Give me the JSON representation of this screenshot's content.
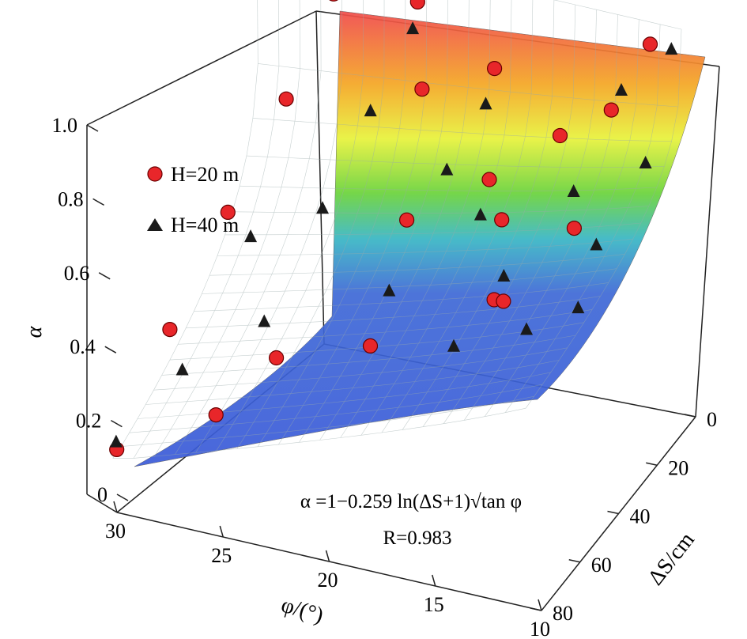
{
  "chart_data": {
    "type": "surface3d-scatter",
    "zlabel": "α",
    "xlabel": "φ/(°)",
    "ylabel": "ΔS/cm",
    "z_ticks": [
      "0",
      "0.2",
      "0.4",
      "0.6",
      "0.8",
      "1.0"
    ],
    "x_ticks": [
      "30",
      "25",
      "20",
      "15",
      "10"
    ],
    "y_ticks": [
      "0",
      "20",
      "40",
      "60",
      "80"
    ],
    "xlim": [
      10,
      30
    ],
    "ylim": [
      0,
      80
    ],
    "zlim": [
      0,
      1.0
    ],
    "equation": "α =1−0.259 ln(ΔS+1)√tan φ",
    "r_value": "R=0.983",
    "surface_colormap": [
      "#3b5bd9",
      "#38b6c4",
      "#6ad33a",
      "#e8f23a",
      "#f5a623",
      "#f04a4a"
    ],
    "legend": [
      {
        "label": "H=20 m",
        "marker": "circle",
        "color": "#e8262a"
      },
      {
        "label": "H=40 m",
        "marker": "triangle",
        "color": "#1a1a1a"
      }
    ],
    "series": [
      {
        "name": "H=20 m",
        "marker": "circle",
        "points": [
          [
            30,
            78,
            0.15
          ],
          [
            29,
            60,
            0.36
          ],
          [
            28,
            40,
            0.55
          ],
          [
            27,
            20,
            0.73
          ],
          [
            26,
            5,
            0.92
          ],
          [
            26,
            70,
            0.24
          ],
          [
            24,
            60,
            0.35
          ],
          [
            20,
            55,
            0.4
          ],
          [
            20,
            35,
            0.6
          ],
          [
            21,
            15,
            0.8
          ],
          [
            22,
            5,
            0.95
          ],
          [
            15,
            45,
            0.52
          ],
          [
            16,
            30,
            0.62
          ],
          [
            17,
            25,
            0.68
          ],
          [
            18,
            10,
            0.86
          ],
          [
            12,
            35,
            0.68
          ],
          [
            12,
            15,
            0.86
          ],
          [
            11,
            5,
            0.98
          ],
          [
            14,
            20,
            0.8
          ],
          [
            14,
            50,
            0.56
          ]
        ]
      },
      {
        "name": "H=40 m",
        "marker": "triangle",
        "points": [
          [
            30,
            78,
            0.17
          ],
          [
            28,
            65,
            0.3
          ],
          [
            27,
            40,
            0.5
          ],
          [
            25,
            55,
            0.4
          ],
          [
            24,
            35,
            0.58
          ],
          [
            23,
            20,
            0.75
          ],
          [
            22,
            8,
            0.9
          ],
          [
            20,
            45,
            0.48
          ],
          [
            19,
            25,
            0.68
          ],
          [
            18,
            15,
            0.8
          ],
          [
            17,
            30,
            0.62
          ],
          [
            16,
            55,
            0.45
          ],
          [
            15,
            40,
            0.55
          ],
          [
            13,
            25,
            0.7
          ],
          [
            12,
            10,
            0.88
          ],
          [
            11,
            45,
            0.55
          ],
          [
            10,
            20,
            0.78
          ],
          [
            10,
            5,
            0.98
          ],
          [
            11,
            35,
            0.65
          ],
          [
            13,
            50,
            0.5
          ]
        ]
      }
    ]
  }
}
